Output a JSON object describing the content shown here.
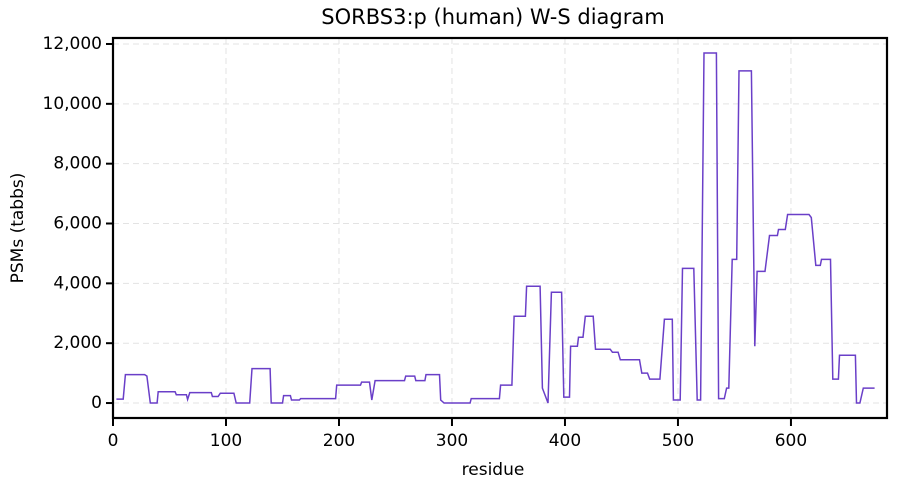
{
  "chart_data": {
    "type": "line",
    "title": "SORBS3:p (human) W-S diagram",
    "xlabel": "residue",
    "ylabel": "PSMs (tabbs)",
    "xlim": [
      0,
      685
    ],
    "ylim": [
      -500,
      12200
    ],
    "xticks": [
      0,
      100,
      200,
      300,
      400,
      500,
      600
    ],
    "yticks": [
      0,
      {
        "value": 2000,
        "label": "2,000"
      },
      {
        "value": 4000,
        "label": "4,000"
      },
      {
        "value": 6000,
        "label": "6,000"
      },
      {
        "value": 8000,
        "label": "8,000"
      },
      {
        "value": 10000,
        "label": "10,000"
      },
      {
        "value": 12000,
        "label": "12,000"
      }
    ],
    "grid": true,
    "x": [
      3,
      9,
      11,
      28,
      30,
      33,
      39,
      40,
      55,
      56,
      65,
      66,
      68,
      87,
      88,
      93,
      95,
      107,
      109,
      121,
      123,
      139,
      140,
      150,
      151,
      157,
      158,
      165,
      166,
      197,
      198,
      219,
      220,
      227,
      229,
      232,
      258,
      259,
      267,
      268,
      276,
      277,
      289,
      290,
      293,
      316,
      317,
      342,
      343,
      353,
      355,
      365,
      366,
      378,
      380,
      385,
      388,
      397,
      399,
      404,
      405,
      411,
      412,
      416,
      418,
      425,
      427,
      440,
      442,
      447,
      449,
      466,
      468,
      473,
      475,
      484,
      488,
      495,
      496,
      502,
      504,
      514,
      517,
      520,
      523,
      534,
      536,
      541,
      543,
      545,
      548,
      552,
      554,
      565,
      568,
      570,
      577,
      581,
      588,
      589,
      595,
      597,
      616,
      618,
      622,
      626,
      627,
      635,
      637,
      642,
      643,
      657,
      658,
      661,
      664,
      674
    ],
    "series": [
      {
        "name": "SORBS3",
        "color": "#6a3fc8",
        "values": [
          130,
          130,
          950,
          950,
          900,
          0,
          0,
          380,
          380,
          280,
          280,
          120,
          350,
          350,
          220,
          220,
          330,
          330,
          0,
          0,
          1150,
          1150,
          0,
          0,
          250,
          250,
          100,
          100,
          150,
          150,
          600,
          600,
          700,
          700,
          100,
          750,
          750,
          900,
          900,
          750,
          750,
          950,
          950,
          100,
          0,
          0,
          150,
          150,
          600,
          600,
          2900,
          2900,
          3900,
          3900,
          500,
          0,
          3700,
          3700,
          200,
          200,
          1900,
          1900,
          2200,
          2200,
          2900,
          2900,
          1800,
          1800,
          1700,
          1700,
          1450,
          1450,
          1000,
          1000,
          800,
          800,
          2800,
          2800,
          100,
          100,
          4500,
          4500,
          100,
          100,
          11700,
          11700,
          150,
          150,
          500,
          500,
          4800,
          4800,
          11100,
          11100,
          1900,
          4400,
          4400,
          5600,
          5600,
          5800,
          5800,
          6300,
          6300,
          6200,
          4600,
          4600,
          4800,
          4800,
          800,
          800,
          1600,
          1600,
          0,
          0,
          500,
          500
        ]
      }
    ]
  }
}
